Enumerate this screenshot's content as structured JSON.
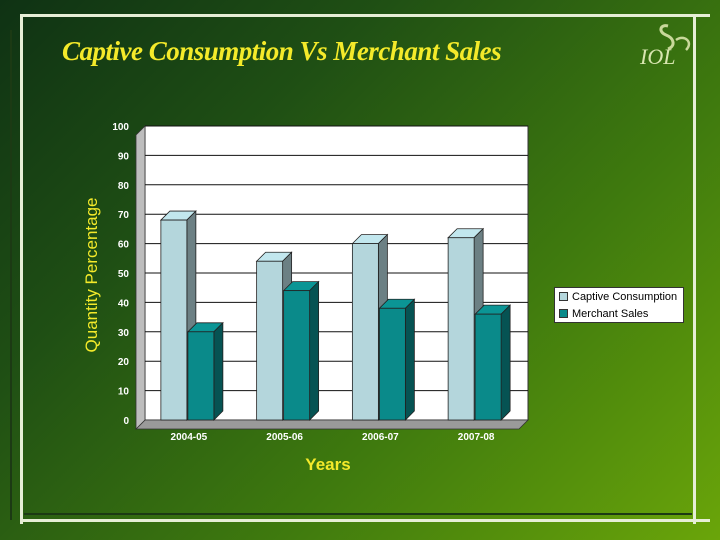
{
  "slide": {
    "title": "Captive Consumption Vs Merchant Sales",
    "logo_text": "IOL"
  },
  "chart_data": {
    "type": "bar",
    "title": "",
    "xlabel": "Years",
    "ylabel": "Quantity Percentage",
    "categories": [
      "2004-05",
      "2005-06",
      "2006-07",
      "2007-08"
    ],
    "series": [
      {
        "name": "Captive Consumption",
        "values": [
          68,
          54,
          60,
          62
        ],
        "color": "#b4d6dc"
      },
      {
        "name": "Merchant Sales",
        "values": [
          30,
          44,
          38,
          36
        ],
        "color": "#0a8a8a"
      }
    ],
    "ylim": [
      0,
      100
    ],
    "yticks": [
      0,
      10,
      20,
      30,
      40,
      50,
      60,
      70,
      80,
      90,
      100
    ],
    "grid": true,
    "legend_position": "right",
    "plot_background": "#ffffff"
  }
}
